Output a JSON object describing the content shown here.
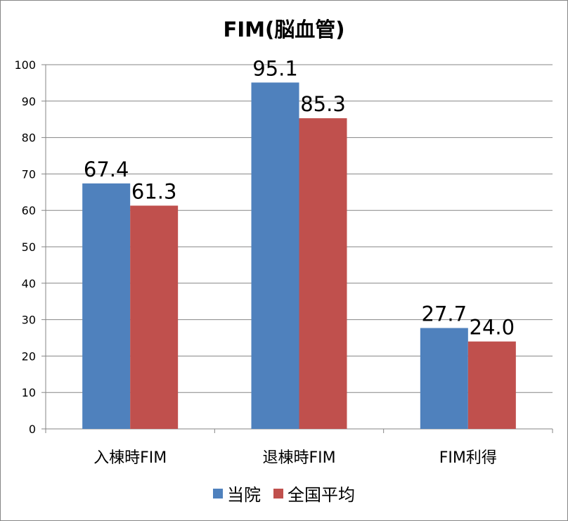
{
  "chart_data": {
    "type": "bar",
    "title": "FIM(脳血管)",
    "categories": [
      "入棟時FIM",
      "退棟時FIM",
      "FIM利得"
    ],
    "series": [
      {
        "name": "当院",
        "values": [
          67.4,
          95.1,
          27.7
        ],
        "labels": [
          "67.4",
          "95.1",
          "27.7"
        ],
        "color": "#4F81BD"
      },
      {
        "name": "全国平均",
        "values": [
          61.3,
          85.3,
          24.0
        ],
        "labels": [
          "61.3",
          "85.3",
          "24.0"
        ],
        "color": "#C0504D"
      }
    ],
    "ylim": [
      0,
      100
    ],
    "yticks": [
      0,
      10,
      20,
      30,
      40,
      50,
      60,
      70,
      80,
      90,
      100
    ],
    "xlabel": "",
    "ylabel": "",
    "grid": true,
    "legend_position": "bottom"
  }
}
